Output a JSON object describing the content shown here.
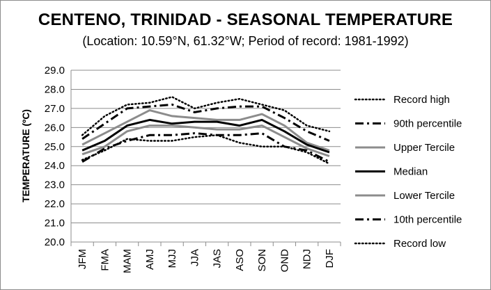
{
  "title": "CENTENO, TRINIDAD - SEASONAL TEMPERATURE",
  "subtitle": "(Location: 10.59°N, 61.32°W; Period of record: 1981-1992)",
  "chart_data": {
    "type": "line",
    "ylabel": "TEMPERATURE (ºC)",
    "xlabel": "",
    "ylim": [
      20.0,
      29.0
    ],
    "yticks": [
      "20.0",
      "21.0",
      "22.0",
      "23.0",
      "24.0",
      "25.0",
      "26.0",
      "27.0",
      "28.0",
      "29.0"
    ],
    "grid": "horizontal",
    "legend_position": "right",
    "categories": [
      "JFM",
      "FMA",
      "MAM",
      "AMJ",
      "MJJ",
      "JJA",
      "JAS",
      "ASO",
      "SON",
      "OND",
      "NDJ",
      "DJF"
    ],
    "series": [
      {
        "name": "Record high",
        "style": "dotted",
        "color": "#000000",
        "values": [
          25.6,
          26.6,
          27.2,
          27.3,
          27.6,
          27.0,
          27.3,
          27.5,
          27.2,
          26.9,
          26.1,
          25.8
        ]
      },
      {
        "name": "90th percentile",
        "style": "dash-dot",
        "color": "#000000",
        "values": [
          25.4,
          26.2,
          27.0,
          27.1,
          27.2,
          26.8,
          27.0,
          27.1,
          27.1,
          26.5,
          25.8,
          25.3
        ]
      },
      {
        "name": "Upper Tercile",
        "style": "solid-gray",
        "color": "#8c8c8c",
        "values": [
          25.1,
          25.7,
          26.3,
          26.9,
          26.6,
          26.5,
          26.4,
          26.4,
          26.7,
          26.1,
          25.2,
          24.8
        ]
      },
      {
        "name": "Median",
        "style": "solid-black",
        "color": "#000000",
        "values": [
          24.8,
          25.3,
          26.1,
          26.4,
          26.2,
          26.3,
          26.3,
          26.1,
          26.4,
          25.8,
          25.1,
          24.7
        ]
      },
      {
        "name": "Lower Tercile",
        "style": "solid-gray",
        "color": "#8c8c8c",
        "values": [
          24.6,
          25.0,
          25.8,
          26.1,
          26.1,
          26.0,
          25.9,
          25.9,
          26.1,
          25.5,
          24.9,
          24.5
        ]
      },
      {
        "name": "10th percentile",
        "style": "dash-dot",
        "color": "#000000",
        "values": [
          24.2,
          24.9,
          25.3,
          25.6,
          25.6,
          25.7,
          25.6,
          25.6,
          25.7,
          25.0,
          24.8,
          24.2
        ]
      },
      {
        "name": "Record low",
        "style": "dotted",
        "color": "#000000",
        "values": [
          24.3,
          24.8,
          25.4,
          25.3,
          25.3,
          25.5,
          25.6,
          25.2,
          25.0,
          25.0,
          24.7,
          24.1
        ]
      }
    ]
  }
}
